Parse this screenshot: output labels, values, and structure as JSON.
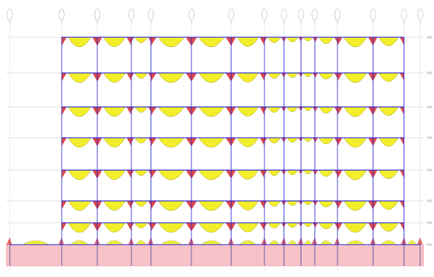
{
  "diagram": {
    "kind": "structural frame bending-moment diagram",
    "column_line_count": 15,
    "floor_count": 8,
    "base_zone_color": "#f9c2c8",
    "positive_moment_fill": "#f2ee2a",
    "negative_moment_fill": "#d62a2a",
    "frame_line_color": "#2a2ad8",
    "grid_color": "#c8c8c8",
    "axis_markers_shown": true,
    "floor_labels_shown": true
  }
}
